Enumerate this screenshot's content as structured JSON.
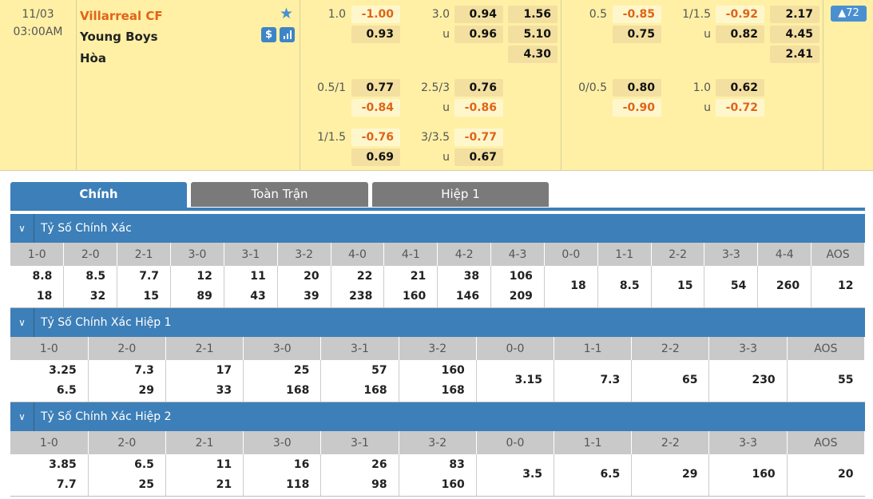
{
  "match": {
    "date": "11/03",
    "time": "03:00AM",
    "home": "Villarreal CF",
    "away": "Young Boys",
    "draw": "Hòa",
    "home_color": "#e06418",
    "icons": [
      "star-icon",
      "dollar-icon",
      "stats-icon"
    ],
    "more_label": "▲72",
    "fulltime": [
      {
        "rows": [
          [
            "1.0",
            "-1.00",
            "3.0",
            "0.94",
            "1.56"
          ],
          [
            "",
            "0.93",
            "u",
            "0.96",
            "5.10"
          ],
          [
            "",
            "",
            "",
            "",
            "4.30"
          ]
        ]
      },
      {
        "rows": [
          [
            "0.5/1",
            "0.77",
            "2.5/3",
            "0.76",
            ""
          ],
          [
            "",
            "-0.84",
            "u",
            "-0.86",
            ""
          ]
        ]
      },
      {
        "rows": [
          [
            "1/1.5",
            "-0.76",
            "3/3.5",
            "-0.77",
            ""
          ],
          [
            "",
            "0.69",
            "u",
            "0.67",
            ""
          ]
        ]
      }
    ],
    "firsthalf": [
      {
        "rows": [
          [
            "0.5",
            "-0.85",
            "1/1.5",
            "-0.92",
            "2.17"
          ],
          [
            "",
            "0.75",
            "u",
            "0.82",
            "4.45"
          ],
          [
            "",
            "",
            "",
            "",
            "2.41"
          ]
        ]
      },
      {
        "rows": [
          [
            "0/0.5",
            "0.80",
            "1.0",
            "0.62",
            ""
          ],
          [
            "",
            "-0.90",
            "u",
            "-0.72",
            ""
          ]
        ]
      }
    ]
  },
  "tabs": [
    "Chính",
    "Toàn Trận",
    "Hiệp 1"
  ],
  "sections": [
    {
      "title": "Tỷ Số Chính Xác",
      "headers": [
        "1-0",
        "2-0",
        "2-1",
        "3-0",
        "3-1",
        "3-2",
        "4-0",
        "4-1",
        "4-2",
        "4-3",
        "0-0",
        "1-1",
        "2-2",
        "3-3",
        "4-4",
        "AOS"
      ],
      "values": [
        [
          "8.8",
          "18"
        ],
        [
          "8.5",
          "32"
        ],
        [
          "7.7",
          "15"
        ],
        [
          "12",
          "89"
        ],
        [
          "11",
          "43"
        ],
        [
          "20",
          "39"
        ],
        [
          "22",
          "238"
        ],
        [
          "21",
          "160"
        ],
        [
          "38",
          "146"
        ],
        [
          "106",
          "209"
        ],
        [
          "18"
        ],
        [
          "8.5"
        ],
        [
          "15"
        ],
        [
          "54"
        ],
        [
          "260"
        ],
        [
          "12"
        ]
      ]
    },
    {
      "title": "Tỷ Số Chính Xác Hiệp 1",
      "headers": [
        "1-0",
        "2-0",
        "2-1",
        "3-0",
        "3-1",
        "3-2",
        "0-0",
        "1-1",
        "2-2",
        "3-3",
        "AOS"
      ],
      "values": [
        [
          "3.25",
          "6.5"
        ],
        [
          "7.3",
          "29"
        ],
        [
          "17",
          "33"
        ],
        [
          "25",
          "168"
        ],
        [
          "57",
          "168"
        ],
        [
          "160",
          "168"
        ],
        [
          "3.15"
        ],
        [
          "7.3"
        ],
        [
          "65"
        ],
        [
          "230"
        ],
        [
          "55"
        ]
      ]
    },
    {
      "title": "Tỷ Số Chính Xác Hiệp 2",
      "headers": [
        "1-0",
        "2-0",
        "2-1",
        "3-0",
        "3-1",
        "3-2",
        "0-0",
        "1-1",
        "2-2",
        "3-3",
        "AOS"
      ],
      "values": [
        [
          "3.85",
          "7.7"
        ],
        [
          "6.5",
          "25"
        ],
        [
          "11",
          "21"
        ],
        [
          "16",
          "118"
        ],
        [
          "26",
          "98"
        ],
        [
          "83",
          "160"
        ],
        [
          "3.5"
        ],
        [
          "6.5"
        ],
        [
          "29"
        ],
        [
          "160"
        ],
        [
          "20"
        ]
      ]
    }
  ]
}
